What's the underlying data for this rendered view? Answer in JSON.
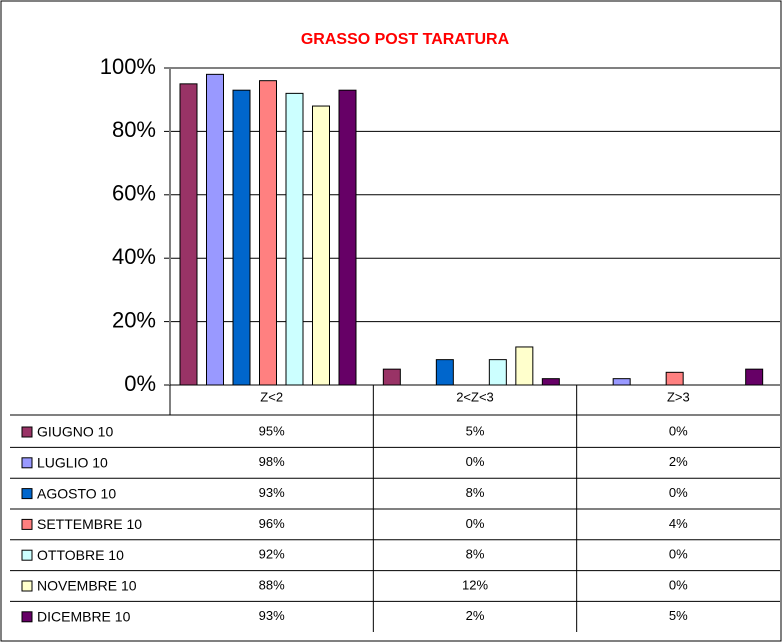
{
  "chart_data": {
    "type": "bar",
    "title": "GRASSO POST TARATURA",
    "categories": [
      "Z<2",
      "2<Z<3",
      "Z>3"
    ],
    "series": [
      {
        "name": "GIUGNO 10",
        "color": "#993366",
        "values": [
          95,
          5,
          0
        ],
        "value_labels": [
          "95%",
          "5%",
          "0%"
        ]
      },
      {
        "name": "LUGLIO 10",
        "color": "#9999FF",
        "values": [
          98,
          0,
          2
        ],
        "value_labels": [
          "98%",
          "0%",
          "2%"
        ]
      },
      {
        "name": "AGOSTO 10",
        "color": "#0066CC",
        "values": [
          93,
          8,
          0
        ],
        "value_labels": [
          "93%",
          "8%",
          "0%"
        ]
      },
      {
        "name": "SETTEMBRE 10",
        "color": "#FF8080",
        "values": [
          96,
          0,
          4
        ],
        "value_labels": [
          "96%",
          "0%",
          "4%"
        ]
      },
      {
        "name": "OTTOBRE 10",
        "color": "#CCFFFF",
        "values": [
          92,
          8,
          0
        ],
        "value_labels": [
          "92%",
          "8%",
          "0%"
        ]
      },
      {
        "name": "NOVEMBRE 10",
        "color": "#FFFFCC",
        "values": [
          88,
          12,
          0
        ],
        "value_labels": [
          "88%",
          "12%",
          "0%"
        ]
      },
      {
        "name": "DICEMBRE 10",
        "color": "#660066",
        "values": [
          93,
          2,
          5
        ],
        "value_labels": [
          "93%",
          "2%",
          "5%"
        ]
      }
    ],
    "ylim": [
      0,
      100
    ],
    "yticks": [
      {
        "value": 0,
        "label": "0%"
      },
      {
        "value": 20,
        "label": "20%"
      },
      {
        "value": 40,
        "label": "40%"
      },
      {
        "value": 60,
        "label": "60%"
      },
      {
        "value": 80,
        "label": "80%"
      },
      {
        "value": 100,
        "label": "100%"
      }
    ],
    "grid": true
  }
}
